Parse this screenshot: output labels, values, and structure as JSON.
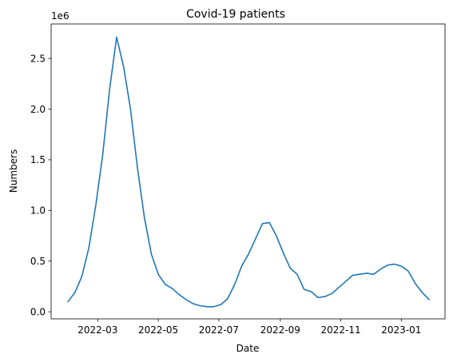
{
  "chart_data": {
    "type": "line",
    "title": "Covid-19 patients",
    "xlabel": "Date",
    "ylabel": "Numbers",
    "y_offset_label": "1e6",
    "xlim": [
      "2022-01-13",
      "2023-02-14"
    ],
    "ylim": [
      -0.07,
      2.84
    ],
    "y_ticks": [
      0.0,
      0.5,
      1.0,
      1.5,
      2.0,
      2.5
    ],
    "y_tick_labels": [
      "0.0",
      "0.5",
      "1.0",
      "1.5",
      "2.0",
      "2.5"
    ],
    "x_ticks": [
      "2022-03-01",
      "2022-05-01",
      "2022-07-01",
      "2022-09-01",
      "2022-11-01",
      "2023-01-01"
    ],
    "x_tick_labels": [
      "2022-03",
      "2022-05",
      "2022-07",
      "2022-09",
      "2022-11",
      "2023-01"
    ],
    "grid": false,
    "series": [
      {
        "color": "#1f77b4",
        "x": [
          "2022-01-30",
          "2022-02-06",
          "2022-02-13",
          "2022-02-20",
          "2022-02-27",
          "2022-03-06",
          "2022-03-13",
          "2022-03-20",
          "2022-03-27",
          "2022-04-03",
          "2022-04-10",
          "2022-04-17",
          "2022-04-24",
          "2022-05-01",
          "2022-05-08",
          "2022-05-15",
          "2022-05-22",
          "2022-05-29",
          "2022-06-05",
          "2022-06-12",
          "2022-06-19",
          "2022-06-26",
          "2022-07-03",
          "2022-07-10",
          "2022-07-17",
          "2022-07-24",
          "2022-07-31",
          "2022-08-07",
          "2022-08-14",
          "2022-08-21",
          "2022-08-28",
          "2022-09-04",
          "2022-09-11",
          "2022-09-18",
          "2022-09-25",
          "2022-10-02",
          "2022-10-09",
          "2022-10-16",
          "2022-10-23",
          "2022-10-30",
          "2022-11-06",
          "2022-11-13",
          "2022-11-20",
          "2022-11-27",
          "2022-12-04",
          "2022-12-11",
          "2022-12-18",
          "2022-12-25",
          "2023-01-01",
          "2023-01-08",
          "2023-01-15",
          "2023-01-22",
          "2023-01-29"
        ],
        "y": [
          0.1,
          0.19,
          0.35,
          0.63,
          1.05,
          1.55,
          2.2,
          2.71,
          2.42,
          2.0,
          1.42,
          0.93,
          0.57,
          0.37,
          0.27,
          0.23,
          0.17,
          0.12,
          0.08,
          0.06,
          0.05,
          0.05,
          0.07,
          0.13,
          0.27,
          0.45,
          0.57,
          0.72,
          0.87,
          0.88,
          0.75,
          0.58,
          0.43,
          0.37,
          0.22,
          0.2,
          0.14,
          0.15,
          0.18,
          0.24,
          0.3,
          0.36,
          0.37,
          0.38,
          0.37,
          0.42,
          0.46,
          0.47,
          0.45,
          0.4,
          0.28,
          0.19,
          0.12
        ]
      }
    ]
  }
}
